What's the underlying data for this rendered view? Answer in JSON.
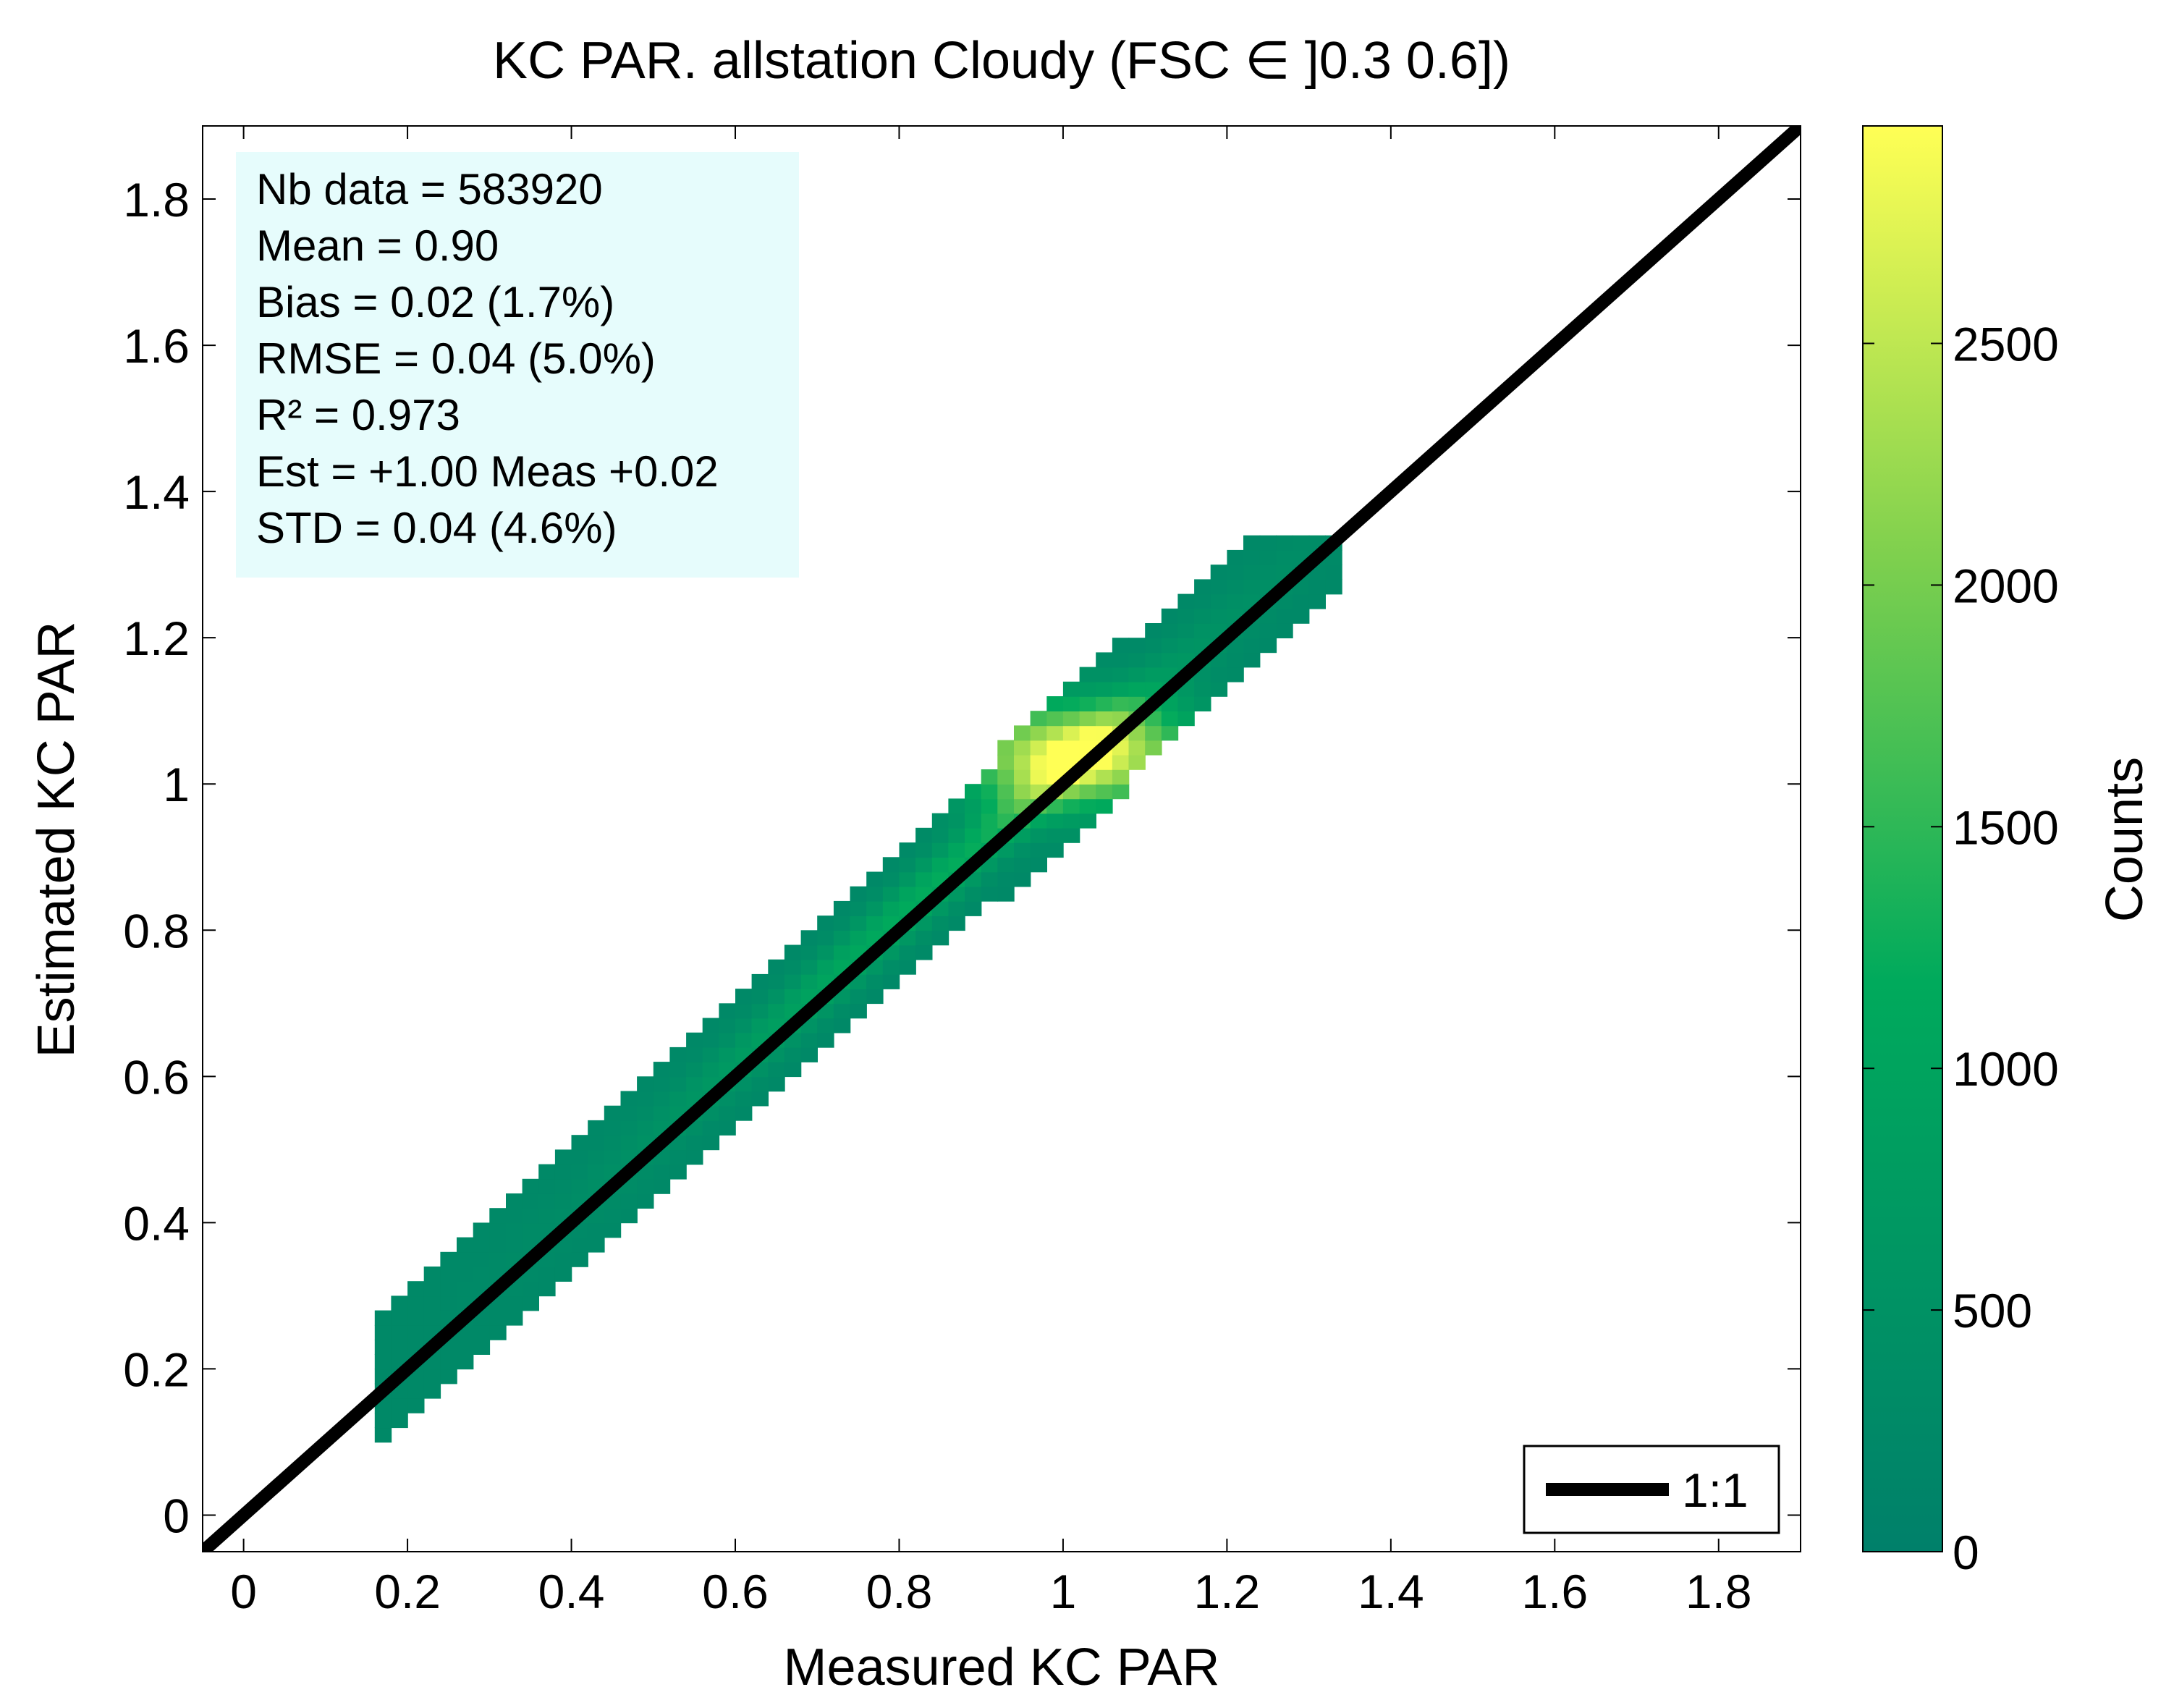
{
  "chart_data": {
    "type": "heatmap",
    "title": "KC PAR. allstation  Cloudy (FSC ∈ ]0.3 0.6])",
    "xlabel": "Measured KC PAR",
    "ylabel": "Estimated KC PAR",
    "xlim": [
      -0.05,
      1.9
    ],
    "ylim": [
      -0.05,
      1.9
    ],
    "xticks": [
      0,
      0.2,
      0.4,
      0.6,
      0.8,
      1,
      1.2,
      1.4,
      1.6,
      1.8
    ],
    "xtick_labels": [
      "0",
      "0.2",
      "0.4",
      "0.6",
      "0.8",
      "1",
      "1.2",
      "1.4",
      "1.6",
      "1.8"
    ],
    "yticks": [
      0,
      0.2,
      0.4,
      0.6,
      0.8,
      1,
      1.2,
      1.4,
      1.6,
      1.8
    ],
    "ytick_labels": [
      "0",
      "0.2",
      "0.4",
      "0.6",
      "0.8",
      "1",
      "1.2",
      "1.4",
      "1.6",
      "1.8"
    ],
    "colorbar": {
      "label": "Counts",
      "range": [
        0,
        2950
      ],
      "ticks": [
        0,
        500,
        1000,
        1500,
        2000,
        2500
      ],
      "tick_labels": [
        "0",
        "500",
        "1000",
        "1500",
        "2000",
        "2500"
      ],
      "colors": [
        "#00806a",
        "#00aa5c",
        "#7fd04e",
        "#ffff55"
      ]
    },
    "density_model": {
      "x_range": [
        0.16,
        1.34
      ],
      "band_halfwidth": 0.085,
      "offset": 0.02,
      "peak": {
        "x": 1.02,
        "y": 1.04,
        "counts": 2950
      },
      "background_counts": 250
    },
    "reference_line": {
      "name": "1:1",
      "slope": 1,
      "intercept": 0,
      "color": "#000000"
    },
    "legend": {
      "position": "bottom-right",
      "entries": [
        "1:1"
      ]
    }
  },
  "stats": {
    "background": "#e6fcfc",
    "lines": [
      "Nb data  = 583920",
      "Mean   =  0.90",
      "Bias     =  0.02 (1.7%)",
      "RMSE  =  0.04  (5.0%)",
      "R²        =  0.973",
      "Est  = +1.00 Meas +0.02",
      "STD      = 0.04 (4.6%)"
    ]
  }
}
